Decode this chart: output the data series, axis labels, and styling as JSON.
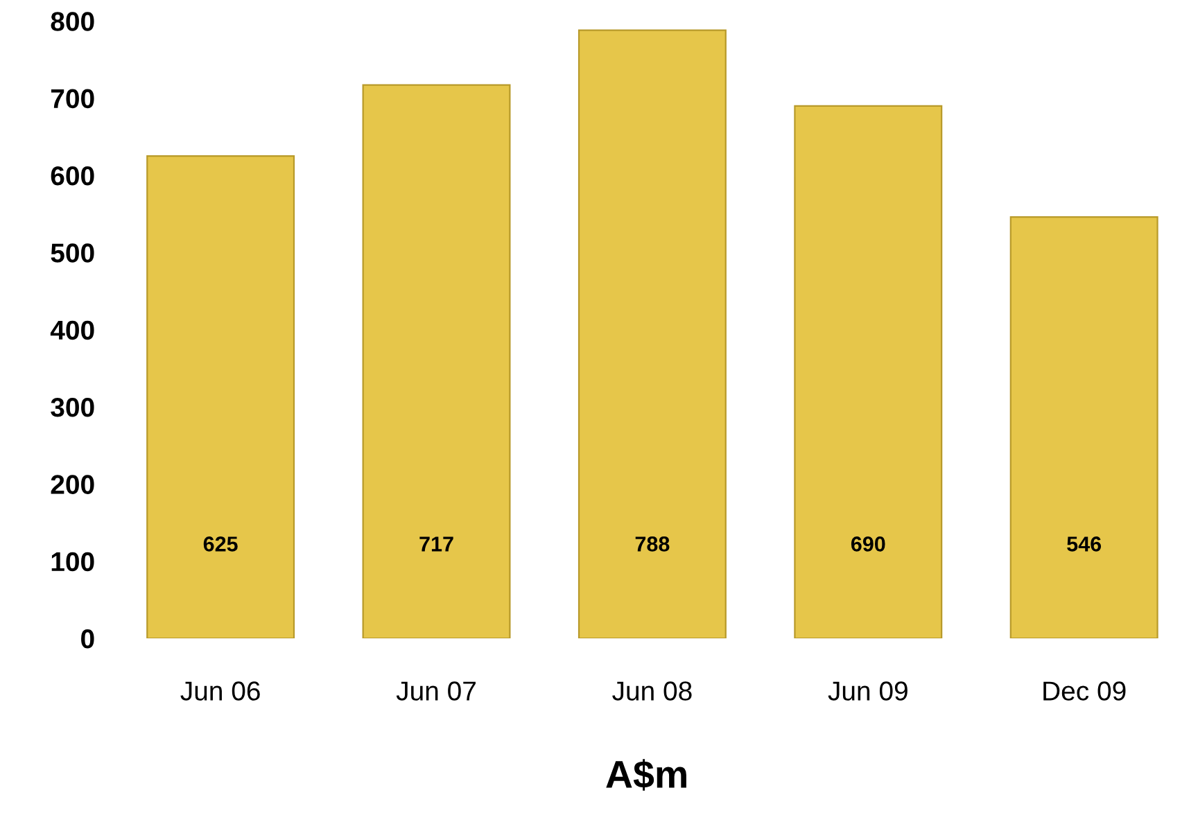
{
  "chart_data": {
    "type": "bar",
    "xlabel": "A$m",
    "categories": [
      "Jun 06",
      "Jun 07",
      "Jun 08",
      "Jun 09",
      "Dec 09"
    ],
    "values": [
      625,
      717,
      788,
      690,
      546
    ],
    "color": "#e6c64a",
    "ylim": [
      0,
      800
    ],
    "yticks": [
      0,
      100,
      200,
      300,
      400,
      500,
      600,
      700,
      800
    ],
    "data_labels": true,
    "grid": false,
    "legend": false
  }
}
